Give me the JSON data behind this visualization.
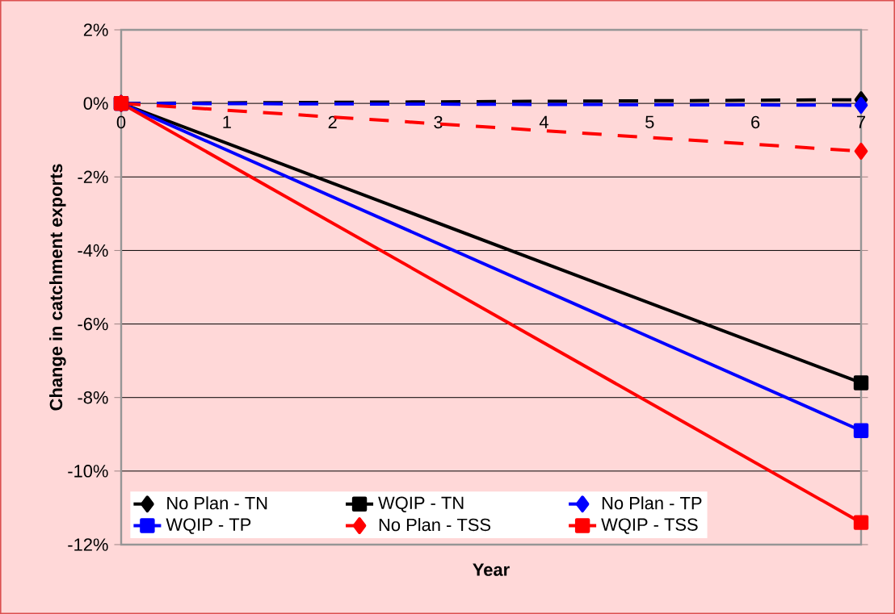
{
  "chart_data": {
    "type": "line",
    "xlabel": "Year",
    "ylabel": "Change in catchment exports",
    "x": [
      0,
      7
    ],
    "series": [
      {
        "name": "No Plan - TN",
        "color": "#000000",
        "values": [
          0,
          0.1
        ],
        "line_style": "dashed",
        "marker": "diamond"
      },
      {
        "name": "WQIP - TN",
        "color": "#000000",
        "values": [
          0,
          -7.6
        ],
        "line_style": "solid",
        "marker": "square"
      },
      {
        "name": "No Plan - TP",
        "color": "#0000ff",
        "values": [
          0,
          -0.05
        ],
        "line_style": "dashed",
        "marker": "diamond"
      },
      {
        "name": "WQIP - TP",
        "color": "#0000ff",
        "values": [
          0,
          -8.9
        ],
        "line_style": "solid",
        "marker": "square"
      },
      {
        "name": "No Plan - TSS",
        "color": "#ff0000",
        "values": [
          0,
          -1.3
        ],
        "line_style": "dashed",
        "marker": "diamond"
      },
      {
        "name": "WQIP - TSS",
        "color": "#ff0000",
        "values": [
          0,
          -11.4
        ],
        "line_style": "solid",
        "marker": "square"
      }
    ],
    "xlim": [
      0,
      7
    ],
    "xticks": [
      0,
      1,
      2,
      3,
      4,
      5,
      6,
      7
    ],
    "ylim": [
      -12,
      2
    ],
    "yticks": [
      {
        "value": -12,
        "label": "-12%"
      },
      {
        "value": -10,
        "label": "-10%"
      },
      {
        "value": -8,
        "label": "-8%"
      },
      {
        "value": -6,
        "label": "-6%"
      },
      {
        "value": -4,
        "label": "-4%"
      },
      {
        "value": -2,
        "label": "-2%"
      },
      {
        "value": 0,
        "label": "0%"
      },
      {
        "value": 2,
        "label": "2%"
      }
    ],
    "grid": "y",
    "legend": "bottom left"
  }
}
